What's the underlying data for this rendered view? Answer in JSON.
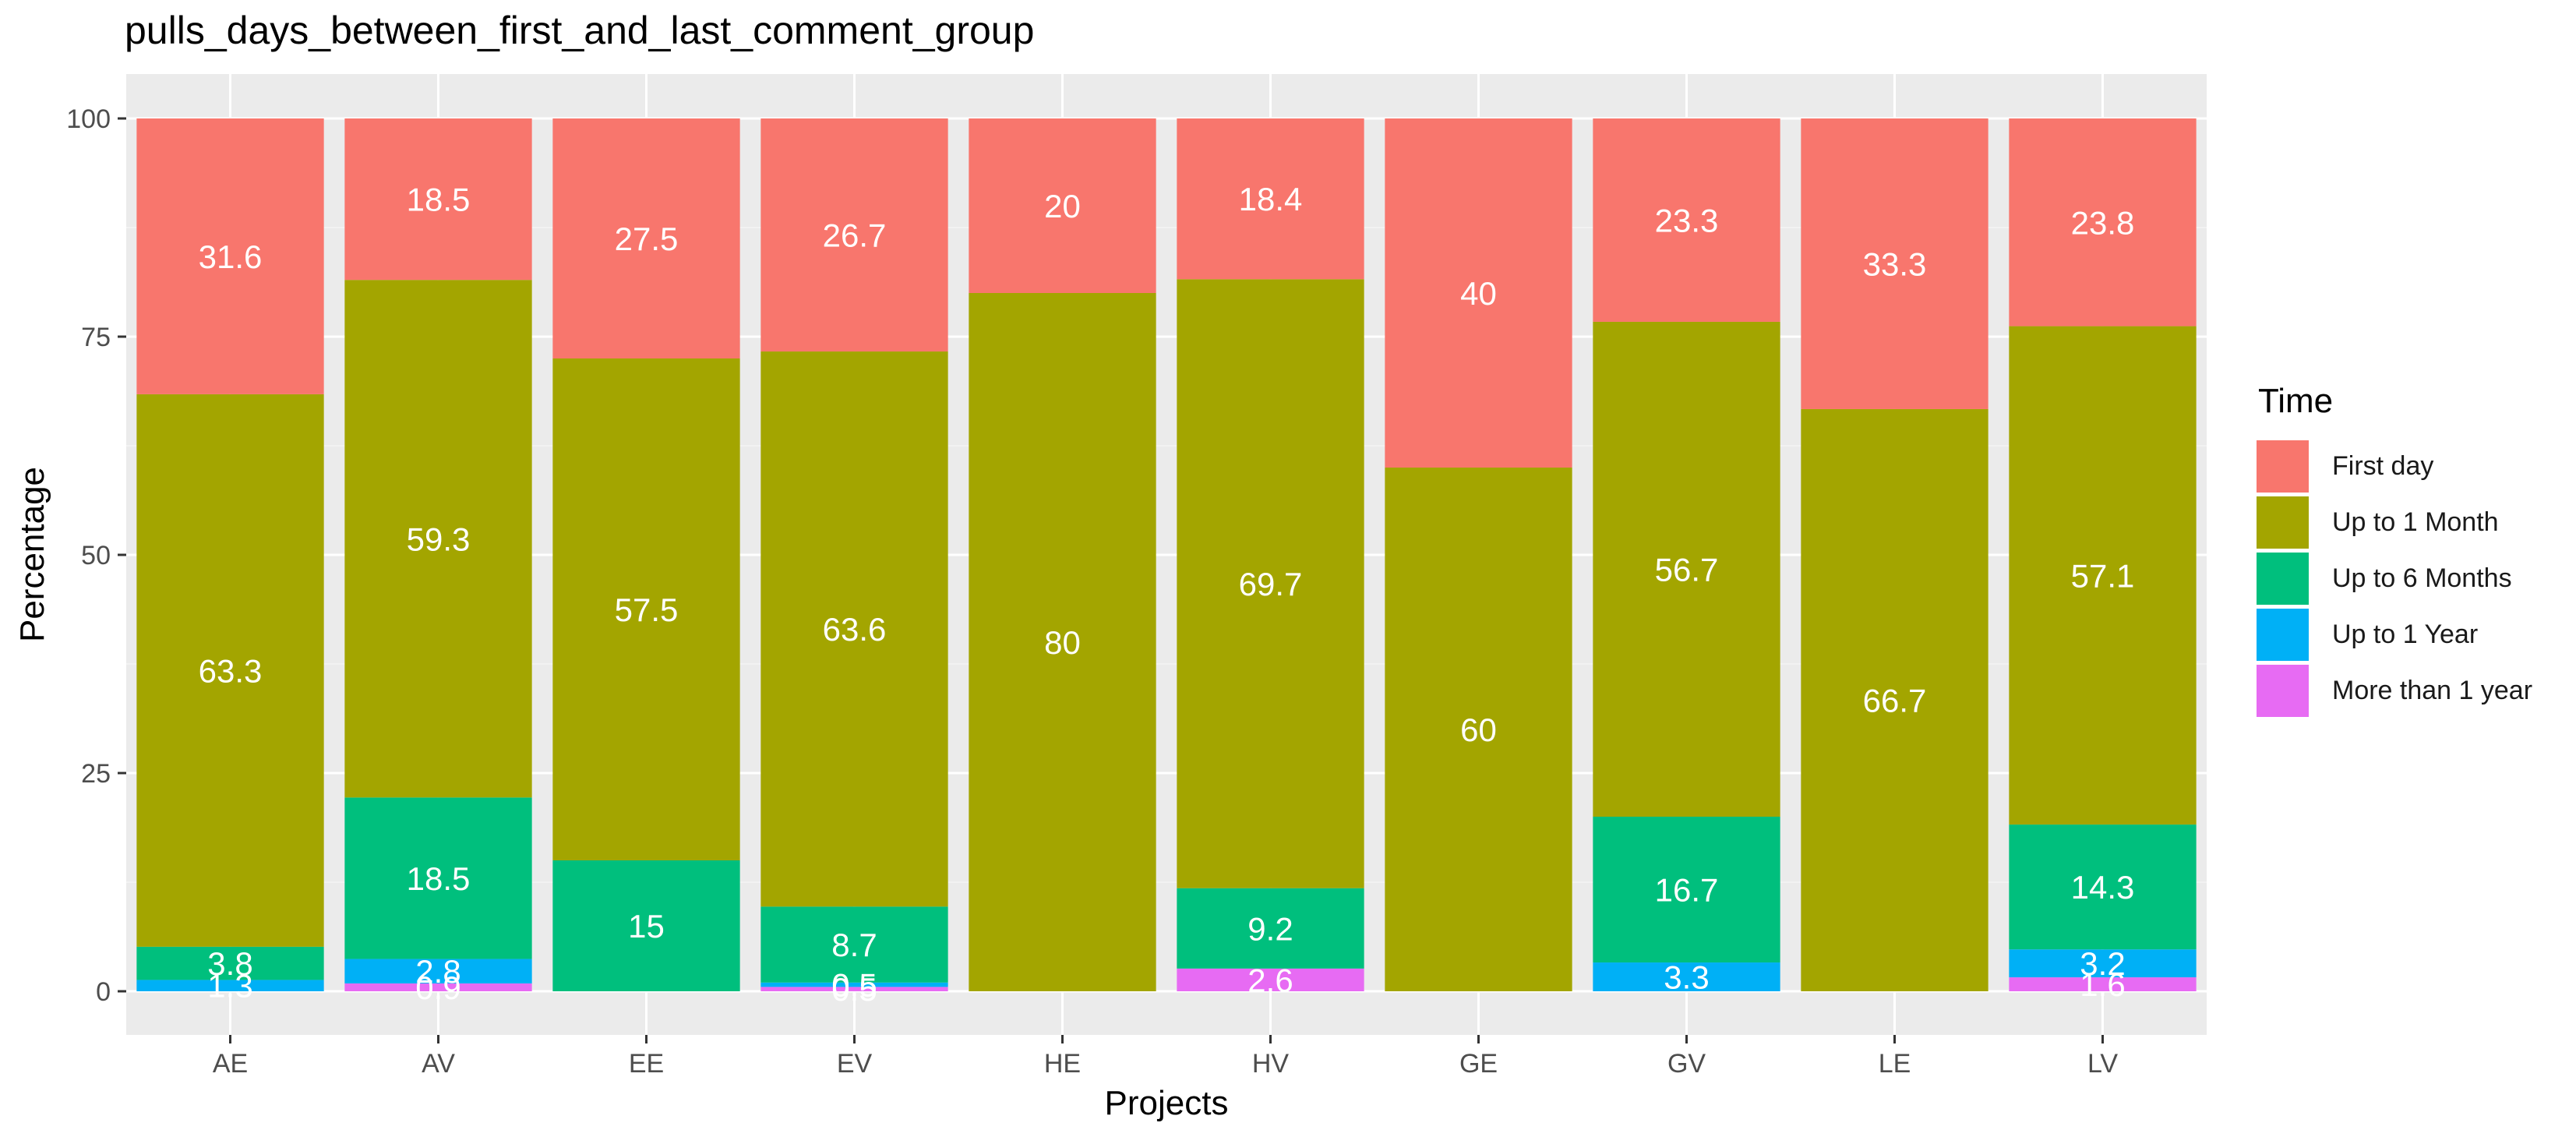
{
  "chart_data": {
    "type": "bar",
    "stacked": true,
    "title": "pulls_days_between_first_and_last_comment_group",
    "xlabel": "Projects",
    "ylabel": "Percentage",
    "ylim": [
      0,
      100
    ],
    "yticks": [
      "0",
      "25",
      "50",
      "75",
      "100"
    ],
    "grid": true,
    "legend": {
      "title": "Time",
      "position": "right"
    },
    "categories": [
      "AE",
      "AV",
      "EE",
      "EV",
      "HE",
      "HV",
      "GE",
      "GV",
      "LE",
      "LV"
    ],
    "series": [
      {
        "name": "First day",
        "color": "#F8766D",
        "values": [
          31.6,
          18.5,
          27.5,
          26.7,
          20,
          18.4,
          40,
          23.3,
          33.3,
          23.8
        ],
        "labels": [
          "31.6",
          "18.5",
          "27.5",
          "26.7",
          "20",
          "18.4",
          "40",
          "23.3",
          "33.3",
          "23.8"
        ]
      },
      {
        "name": "Up to 1 Month",
        "color": "#A3A500",
        "values": [
          63.3,
          59.3,
          57.5,
          63.6,
          80,
          69.7,
          60,
          56.7,
          66.7,
          57.1
        ],
        "labels": [
          "63.3",
          "59.3",
          "57.5",
          "63.6",
          "80",
          "69.7",
          "60",
          "56.7",
          "66.7",
          "57.1"
        ]
      },
      {
        "name": "Up to 6 Months",
        "color": "#00BF7D",
        "values": [
          3.8,
          18.5,
          15,
          8.7,
          0,
          9.2,
          0,
          16.7,
          0,
          14.3
        ],
        "labels": [
          "3.8",
          "18.5",
          "15",
          "8.7",
          "",
          "9.2",
          "",
          "16.7",
          "",
          "14.3"
        ]
      },
      {
        "name": "Up to 1 Year",
        "color": "#00B0F6",
        "values": [
          1.3,
          2.8,
          0,
          0.5,
          0,
          0,
          0,
          3.3,
          0,
          3.2
        ],
        "labels": [
          "1.3",
          "2.8",
          "",
          "0.5",
          "",
          "",
          "",
          "3.3",
          "",
          "3.2"
        ]
      },
      {
        "name": "More than 1 year",
        "color": "#E76BF3",
        "values": [
          0,
          0.9,
          0,
          0.5,
          0,
          2.6,
          0,
          0,
          0,
          1.6
        ],
        "labels": [
          "",
          "0.9",
          "",
          "0.5",
          "",
          "2.6",
          "",
          "",
          "",
          "1.6"
        ]
      }
    ]
  }
}
